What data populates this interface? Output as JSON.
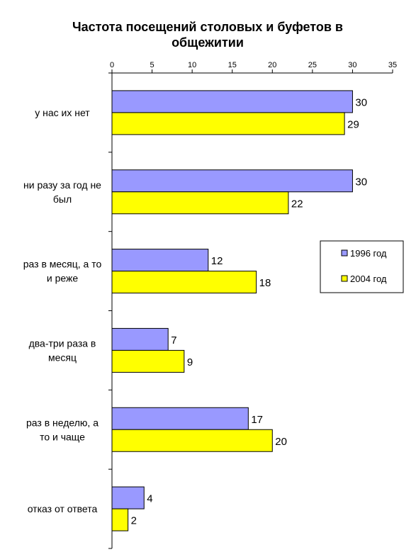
{
  "chart_data": {
    "type": "bar",
    "orientation": "horizontal",
    "title_lines": [
      "Частота посещений столовых и буфетов в",
      "общежитии"
    ],
    "categories": [
      [
        "у нас их нет"
      ],
      [
        "ни разу за год не",
        "был"
      ],
      [
        "раз в месяц, а то",
        "и реже"
      ],
      [
        "два-три раза в",
        "месяц"
      ],
      [
        "раз в неделю, а",
        "то и чаще"
      ],
      [
        "отказ от ответа"
      ]
    ],
    "series": [
      {
        "name": "1996 год",
        "color": "#9999ff",
        "values": [
          30,
          30,
          12,
          7,
          17,
          4
        ]
      },
      {
        "name": "2004 год",
        "color": "#ffff00",
        "values": [
          29,
          22,
          18,
          9,
          20,
          2
        ]
      }
    ],
    "xlim": [
      0,
      35
    ],
    "xticks": [
      0,
      5,
      10,
      15,
      20,
      25,
      30,
      35
    ],
    "tick_labels": [
      "0",
      "5",
      "10",
      "15",
      "20",
      "25",
      "30",
      "35"
    ],
    "data_labels": [
      [
        "30",
        "30",
        "12",
        "7",
        "17",
        "4"
      ],
      [
        "29",
        "22",
        "18",
        "9",
        "20",
        "2"
      ]
    ],
    "xaxis_position": "top",
    "grid": false,
    "legend_position": "right"
  }
}
